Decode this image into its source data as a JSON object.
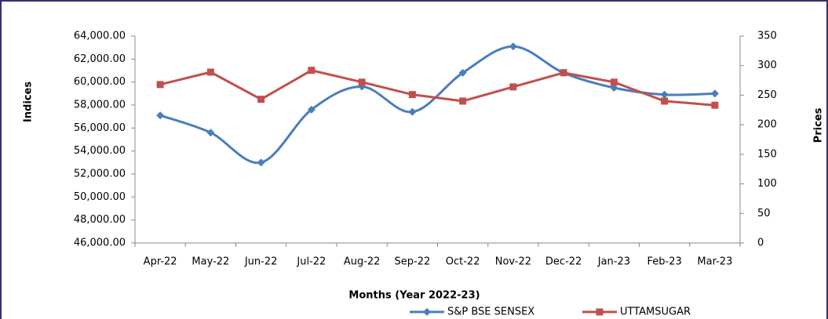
{
  "chart_data": {
    "type": "line",
    "x_label": "Months (Year 2022-23)",
    "y_label": "Indices",
    "y2_label": "Prices",
    "categories": [
      "Apr-22",
      "May-22",
      "Jun-22",
      "Jul-22",
      "Aug-22",
      "Sep-22",
      "Oct-22",
      "Nov-22",
      "Dec-22",
      "Jan-23",
      "Feb-23",
      "Mar-23"
    ],
    "series": [
      {
        "name": "S&P BSE SENSEX",
        "color": "#4a7ebb",
        "marker": "diamond",
        "smooth": true,
        "values": [
          57100,
          55600,
          53000,
          57600,
          59600,
          57400,
          60800,
          63100,
          60800,
          59500,
          58900,
          59000
        ]
      },
      {
        "name": "UTTAMSUGAR",
        "color": "#c0504d",
        "marker": "square",
        "smooth": false,
        "axis": "y2",
        "values": [
          268,
          289,
          243,
          292,
          272,
          251,
          240,
          264,
          288,
          272,
          240,
          233
        ]
      }
    ],
    "ylim": [
      46000,
      64000
    ],
    "yticks": [
      {
        "value": 46000,
        "label": "46,000.00"
      },
      {
        "value": 48000,
        "label": "48,000.00"
      },
      {
        "value": 50000,
        "label": "50,000.00"
      },
      {
        "value": 52000,
        "label": "52,000.00"
      },
      {
        "value": 54000,
        "label": "54,000.00"
      },
      {
        "value": 56000,
        "label": "56,000.00"
      },
      {
        "value": 58000,
        "label": "58,000.00"
      },
      {
        "value": 60000,
        "label": "60,000.00"
      },
      {
        "value": 62000,
        "label": "62,000.00"
      },
      {
        "value": 64000,
        "label": "64,000.00"
      }
    ],
    "y2lim": [
      0,
      350
    ],
    "y2ticks": [
      0,
      50,
      100,
      150,
      200,
      250,
      300,
      350
    ],
    "grid": false,
    "legend": "bottom"
  }
}
